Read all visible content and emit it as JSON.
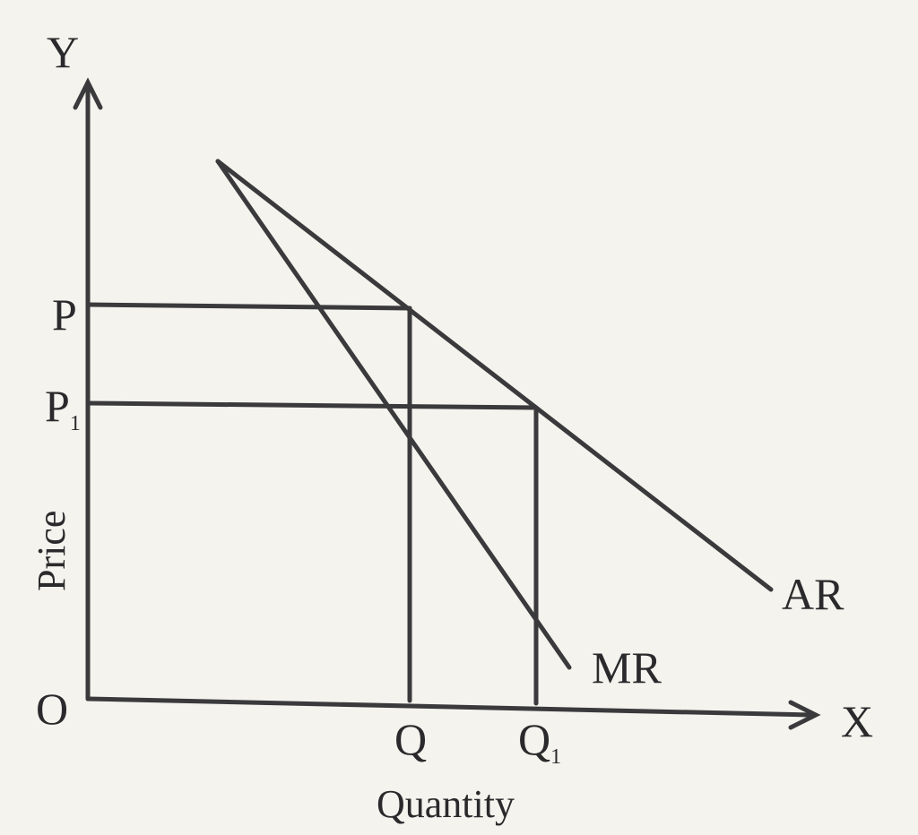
{
  "diagram": {
    "axes": {
      "y_letter": "Y",
      "x_letter": "X",
      "origin": "O",
      "y_title": "Price",
      "x_title": "Quantity"
    },
    "price_labels": [
      {
        "main": "P",
        "sub": ""
      },
      {
        "main": "P",
        "sub": "1"
      }
    ],
    "quantity_labels": [
      {
        "main": "Q",
        "sub": ""
      },
      {
        "main": "Q",
        "sub": "1"
      }
    ],
    "curves": {
      "ar": "AR",
      "mr": "MR"
    },
    "colors": {
      "background": "#f4f3ee",
      "ink": "#3a3a3c"
    }
  }
}
